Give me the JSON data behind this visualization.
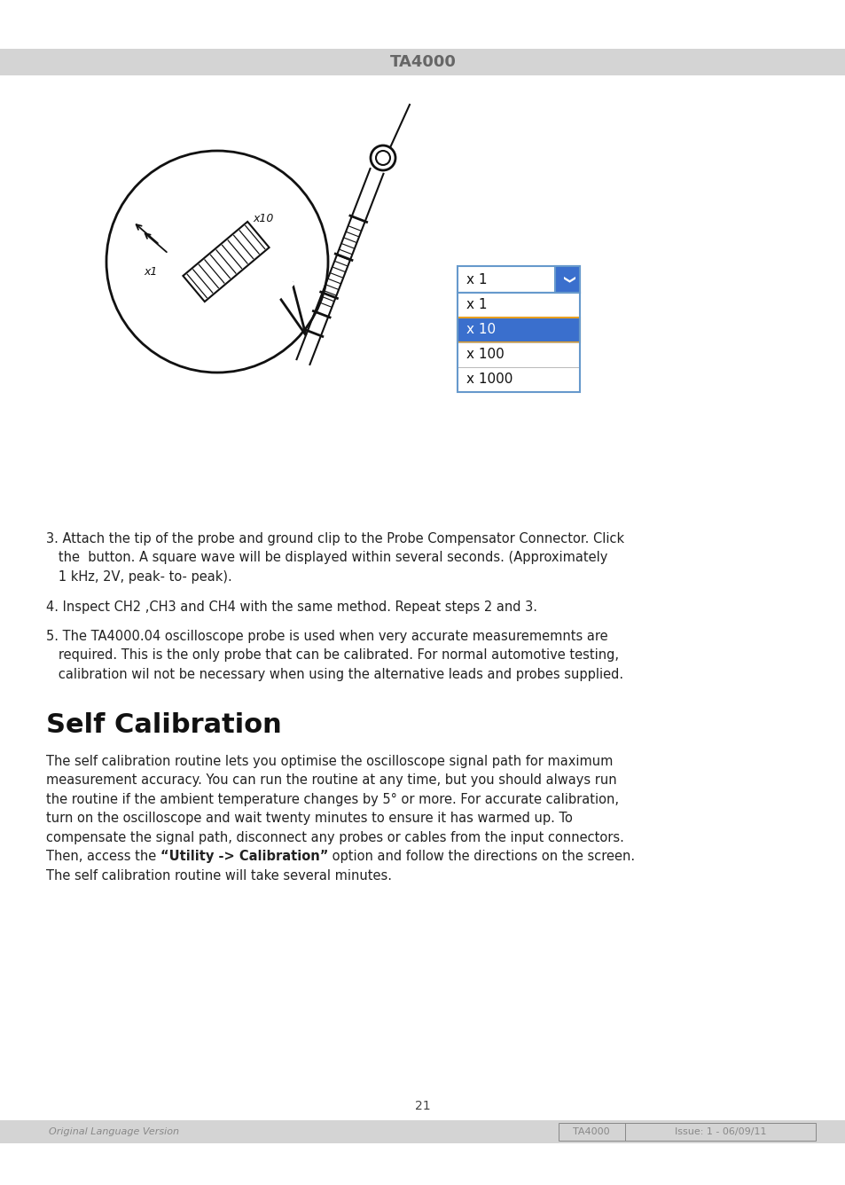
{
  "header_bg": "#d4d4d4",
  "header_text": "TA4000",
  "header_text_color": "#666666",
  "footer_bg": "#d4d4d4",
  "footer_left_text": "Original Language Version",
  "footer_right_text1": "TA4000",
  "footer_right_text2": "Issue: 1 - 06/09/11",
  "footer_text_color": "#888888",
  "page_number": "21",
  "bg_color": "#ffffff",
  "dropdown_header_label": "x 1",
  "dropdown_items": [
    "x 1",
    "x 10",
    "x 100",
    "x 1000"
  ],
  "dropdown_selected_idx": 1,
  "dropdown_selected_bg": "#3a6fcd",
  "dropdown_border_color": "#6699cc",
  "dropdown_text_color": "#111111",
  "dropdown_selected_text_color": "#ffffff",
  "step3_lines": [
    "3. Attach the tip of the probe and ground clip to the Probe Compensator Connector. Click",
    "   the  button. A square wave will be displayed within several seconds. (Approximately",
    "   1 kHz, 2V, peak- to- peak)."
  ],
  "step4_line": "4. Inspect CH2 ,CH3 and CH4 with the same method. Repeat steps 2 and 3.",
  "step5_lines": [
    "5. The TA4000.04 oscilloscope probe is used when very accurate measurememnts are",
    "   required. This is the only probe that can be calibrated. For normal automotive testing,",
    "   calibration wil not be necessary when using the alternative leads and probes supplied."
  ],
  "section_title": "Self Calibration",
  "body_lines": [
    "The self calibration routine lets you optimise the oscilloscope signal path for maximum",
    "measurement accuracy. You can run the routine at any time, but you should always run",
    "the routine if the ambient temperature changes by 5° or more. For accurate calibration,",
    "turn on the oscilloscope and wait twenty minutes to ensure it has warmed up. To",
    "compensate the signal path, disconnect any probes or cables from the input connectors.",
    "Then, access the “Utility -> Calibration” option and follow the directions on the screen.",
    "The self calibration routine will take several minutes."
  ],
  "body_bold_line_idx": 5,
  "body_bold_before": "Then, access the ",
  "body_bold_phrase": "“Utility -> Calibration”",
  "body_bold_after": " option and follow the directions on the screen."
}
